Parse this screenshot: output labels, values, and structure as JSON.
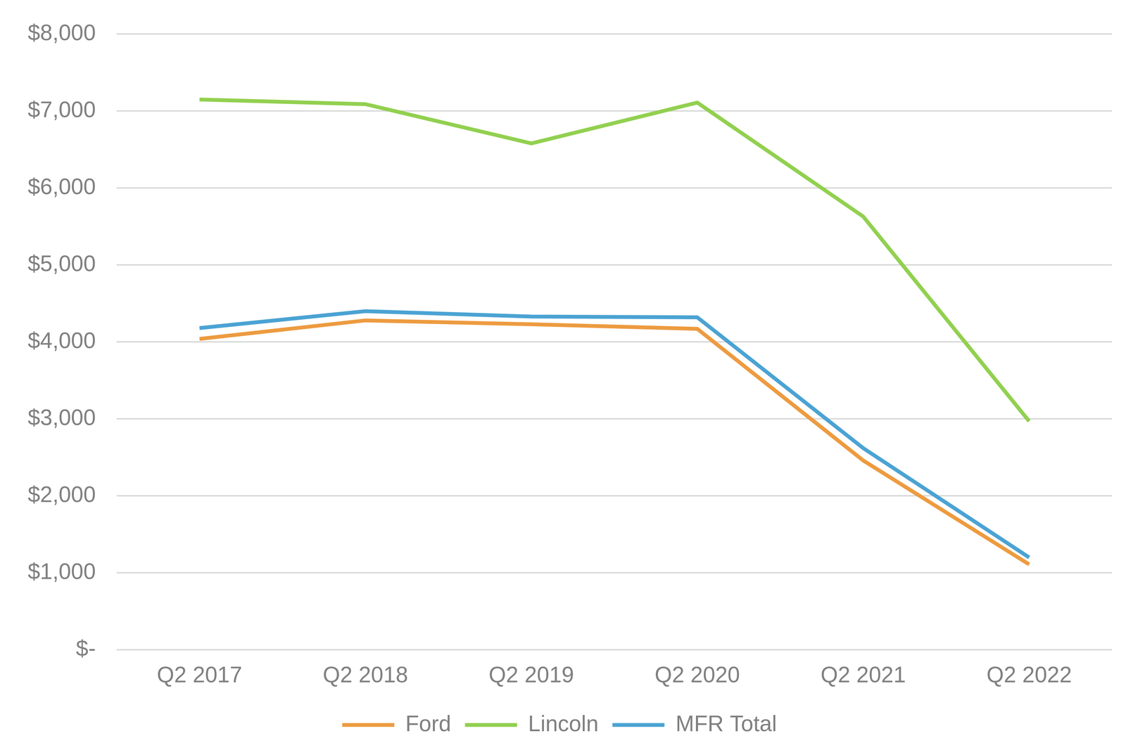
{
  "chart_data": {
    "type": "line",
    "categories": [
      "Q2 2017",
      "Q2 2018",
      "Q2 2019",
      "Q2 2020",
      "Q2 2021",
      "Q2 2022"
    ],
    "series": [
      {
        "name": "Ford",
        "color": "#ed9b40",
        "values": [
          4040,
          4280,
          4230,
          4170,
          2460,
          1110
        ]
      },
      {
        "name": "Lincoln",
        "color": "#92d050",
        "values": [
          7150,
          7090,
          6580,
          7110,
          5630,
          2970
        ]
      },
      {
        "name": "MFR Total",
        "color": "#4ba3d3",
        "values": [
          4180,
          4400,
          4330,
          4320,
          2620,
          1200
        ]
      }
    ],
    "ylim": [
      0,
      8000
    ],
    "yticks": [
      {
        "value": 0,
        "label": "$-"
      },
      {
        "value": 1000,
        "label": "$1,000"
      },
      {
        "value": 2000,
        "label": "$2,000"
      },
      {
        "value": 3000,
        "label": "$3,000"
      },
      {
        "value": 4000,
        "label": "$4,000"
      },
      {
        "value": 5000,
        "label": "$5,000"
      },
      {
        "value": 6000,
        "label": "$6,000"
      },
      {
        "value": 7000,
        "label": "$7,000"
      },
      {
        "value": 8000,
        "label": "$8,000"
      }
    ],
    "grid": true,
    "legend": "bottom"
  }
}
